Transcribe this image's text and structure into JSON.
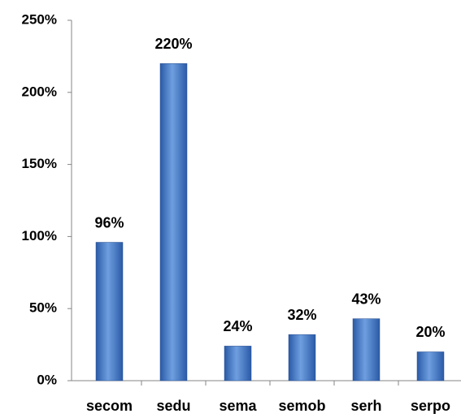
{
  "chart_data": {
    "type": "bar",
    "categories": [
      "secom",
      "sedu",
      "sema",
      "semob",
      "serh",
      "serpo"
    ],
    "values": [
      96,
      220,
      24,
      32,
      43,
      20
    ],
    "value_labels": [
      "96%",
      "220%",
      "24%",
      "32%",
      "43%",
      "20%"
    ],
    "color": "#3f74c4",
    "ylim": [
      0,
      250
    ],
    "yticks": [
      {
        "value": 0,
        "label": "0%"
      },
      {
        "value": 50,
        "label": "50%"
      },
      {
        "value": 100,
        "label": "100%"
      },
      {
        "value": 150,
        "label": "150%"
      },
      {
        "value": 200,
        "label": "200%"
      },
      {
        "value": 250,
        "label": "250%"
      }
    ],
    "grid": false
  }
}
